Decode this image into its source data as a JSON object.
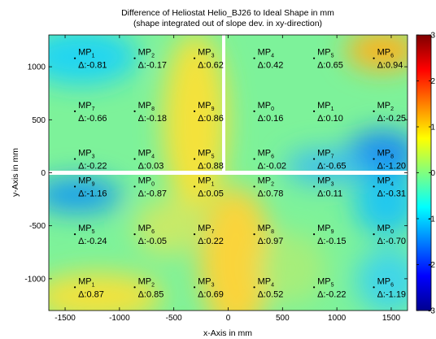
{
  "chart_data": {
    "type": "heatmap",
    "title": "Difference of Heliostat Helio_BJ26 to Ideal Shape in mm",
    "subtitle": "(shape integrated out of slope dev. in xy-direction)",
    "xlabel": "x-Axis in mm",
    "ylabel": "y-Axis in mm",
    "xlim": [
      -1650,
      1650
    ],
    "ylim": [
      -1300,
      1300
    ],
    "xticks": [
      "-1500",
      "-1000",
      "-500",
      "0",
      "500",
      "1000",
      "1500"
    ],
    "xtick_values": [
      -1500,
      -1000,
      -500,
      0,
      500,
      1000,
      1500
    ],
    "yticks": [
      "1000",
      "500",
      "0",
      "-500",
      "-1000"
    ],
    "ytick_values": [
      1000,
      500,
      0,
      -500,
      -1000
    ],
    "colorbar": {
      "range": [
        -3,
        3
      ],
      "ticks": [
        "3",
        "2",
        "1",
        "0",
        "-1",
        "-2",
        "-3"
      ],
      "tick_values": [
        3,
        2,
        1,
        0,
        -1,
        -2,
        -3
      ],
      "colormap": "jet"
    },
    "grid": false,
    "measurement_points": [
      {
        "prefix": "MP",
        "sub": "1",
        "delta": "Δ:-0.81",
        "x": -1380,
        "y": 1080
      },
      {
        "prefix": "MP",
        "sub": "2",
        "delta": "Δ:-0.17",
        "x": -830,
        "y": 1080
      },
      {
        "prefix": "MP",
        "sub": "3",
        "delta": "Δ:0.62",
        "x": -280,
        "y": 1080
      },
      {
        "prefix": "MP",
        "sub": "4",
        "delta": "Δ:0.42",
        "x": 270,
        "y": 1080
      },
      {
        "prefix": "MP",
        "sub": "5",
        "delta": "Δ:0.65",
        "x": 820,
        "y": 1080
      },
      {
        "prefix": "MP",
        "sub": "6",
        "delta": "Δ:0.94",
        "x": 1370,
        "y": 1080
      },
      {
        "prefix": "MP",
        "sub": "7",
        "delta": "Δ:-0.66",
        "x": -1380,
        "y": 580
      },
      {
        "prefix": "MP",
        "sub": "8",
        "delta": "Δ:-0.18",
        "x": -830,
        "y": 580
      },
      {
        "prefix": "MP",
        "sub": "9",
        "delta": "Δ:0.86",
        "x": -280,
        "y": 580
      },
      {
        "prefix": "MP",
        "sub": "0",
        "delta": "Δ:0.16",
        "x": 270,
        "y": 580
      },
      {
        "prefix": "MP",
        "sub": "1",
        "delta": "Δ:0.10",
        "x": 820,
        "y": 580
      },
      {
        "prefix": "MP",
        "sub": "2",
        "delta": "Δ:-0.25",
        "x": 1370,
        "y": 580
      },
      {
        "prefix": "MP",
        "sub": "3",
        "delta": "Δ:-0.22",
        "x": -1380,
        "y": 130
      },
      {
        "prefix": "MP",
        "sub": "4",
        "delta": "Δ:0.03",
        "x": -830,
        "y": 130
      },
      {
        "prefix": "MP",
        "sub": "5",
        "delta": "Δ:0.88",
        "x": -280,
        "y": 130
      },
      {
        "prefix": "MP",
        "sub": "6",
        "delta": "Δ:-0.02",
        "x": 270,
        "y": 130
      },
      {
        "prefix": "MP",
        "sub": "7",
        "delta": "Δ:-0.65",
        "x": 820,
        "y": 130
      },
      {
        "prefix": "MP",
        "sub": "8",
        "delta": "Δ:-1.20",
        "x": 1370,
        "y": 130
      },
      {
        "prefix": "MP",
        "sub": "9",
        "delta": "Δ:-1.16",
        "x": -1380,
        "y": -130
      },
      {
        "prefix": "MP",
        "sub": "0",
        "delta": "Δ:-0.87",
        "x": -830,
        "y": -130
      },
      {
        "prefix": "MP",
        "sub": "1",
        "delta": "Δ:0.05",
        "x": -280,
        "y": -130
      },
      {
        "prefix": "MP",
        "sub": "2",
        "delta": "Δ:0.78",
        "x": 270,
        "y": -130
      },
      {
        "prefix": "MP",
        "sub": "3",
        "delta": "Δ:0.11",
        "x": 820,
        "y": -130
      },
      {
        "prefix": "MP",
        "sub": "4",
        "delta": "Δ:-0.31",
        "x": 1370,
        "y": -130
      },
      {
        "prefix": "MP",
        "sub": "5",
        "delta": "Δ:-0.24",
        "x": -1380,
        "y": -580
      },
      {
        "prefix": "MP",
        "sub": "6",
        "delta": "Δ:-0.05",
        "x": -830,
        "y": -580
      },
      {
        "prefix": "MP",
        "sub": "7",
        "delta": "Δ:0.22",
        "x": -280,
        "y": -580
      },
      {
        "prefix": "MP",
        "sub": "8",
        "delta": "Δ:0.97",
        "x": 270,
        "y": -580
      },
      {
        "prefix": "MP",
        "sub": "9",
        "delta": "Δ:-0.15",
        "x": 820,
        "y": -580
      },
      {
        "prefix": "MP",
        "sub": "0",
        "delta": "Δ:-0.70",
        "x": 1370,
        "y": -580
      },
      {
        "prefix": "MP",
        "sub": "1",
        "delta": "Δ:0.87",
        "x": -1380,
        "y": -1080
      },
      {
        "prefix": "MP",
        "sub": "2",
        "delta": "Δ:0.85",
        "x": -830,
        "y": -1080
      },
      {
        "prefix": "MP",
        "sub": "3",
        "delta": "Δ:0.69",
        "x": -280,
        "y": -1080
      },
      {
        "prefix": "MP",
        "sub": "4",
        "delta": "Δ:0.52",
        "x": 270,
        "y": -1080
      },
      {
        "prefix": "MP",
        "sub": "5",
        "delta": "Δ:-0.22",
        "x": 820,
        "y": -1080
      },
      {
        "prefix": "MP",
        "sub": "6",
        "delta": "Δ:-1.19",
        "x": 1370,
        "y": -1080
      }
    ]
  }
}
